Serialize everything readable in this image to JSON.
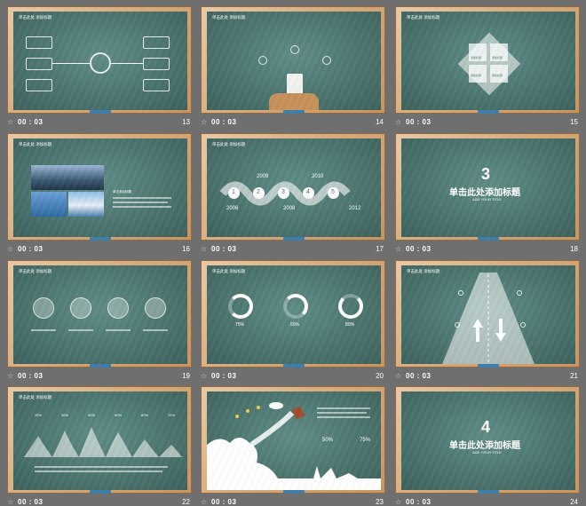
{
  "common": {
    "header": "单击此处  添加标题",
    "time": "00 : 03",
    "small_label": "单击添加标题",
    "star_icon": "star-icon"
  },
  "slides": [
    {
      "number": "13"
    },
    {
      "number": "14"
    },
    {
      "number": "15",
      "center_labels": [
        "添加标题",
        "添加标题",
        "添加标题",
        "添加标题"
      ]
    },
    {
      "number": "16"
    },
    {
      "number": "17",
      "years": [
        "2006",
        "2009",
        "2008",
        "2010",
        "2012"
      ],
      "steps": [
        "1",
        "2",
        "3",
        "4",
        "5"
      ]
    },
    {
      "number": "18",
      "big": "3",
      "title": "单击此处添加标题",
      "subtitle": "ADD YOUR TITLE"
    },
    {
      "number": "19"
    },
    {
      "number": "20",
      "percents": [
        "75%",
        "50%",
        "80%"
      ]
    },
    {
      "number": "21"
    },
    {
      "number": "22",
      "percents": [
        "20%",
        "30%",
        "40%",
        "50%",
        "60%",
        "70%"
      ]
    },
    {
      "number": "23",
      "percents": [
        "50%",
        "75%"
      ]
    },
    {
      "number": "24",
      "big": "4",
      "title": "单击此处添加标题",
      "subtitle": "ADD YOUR TITLE"
    }
  ],
  "colors": {
    "background": "#6f6f6f",
    "board": "#4c7570",
    "frame": "#d7ab7c",
    "eraser": "#3e7ea8"
  }
}
